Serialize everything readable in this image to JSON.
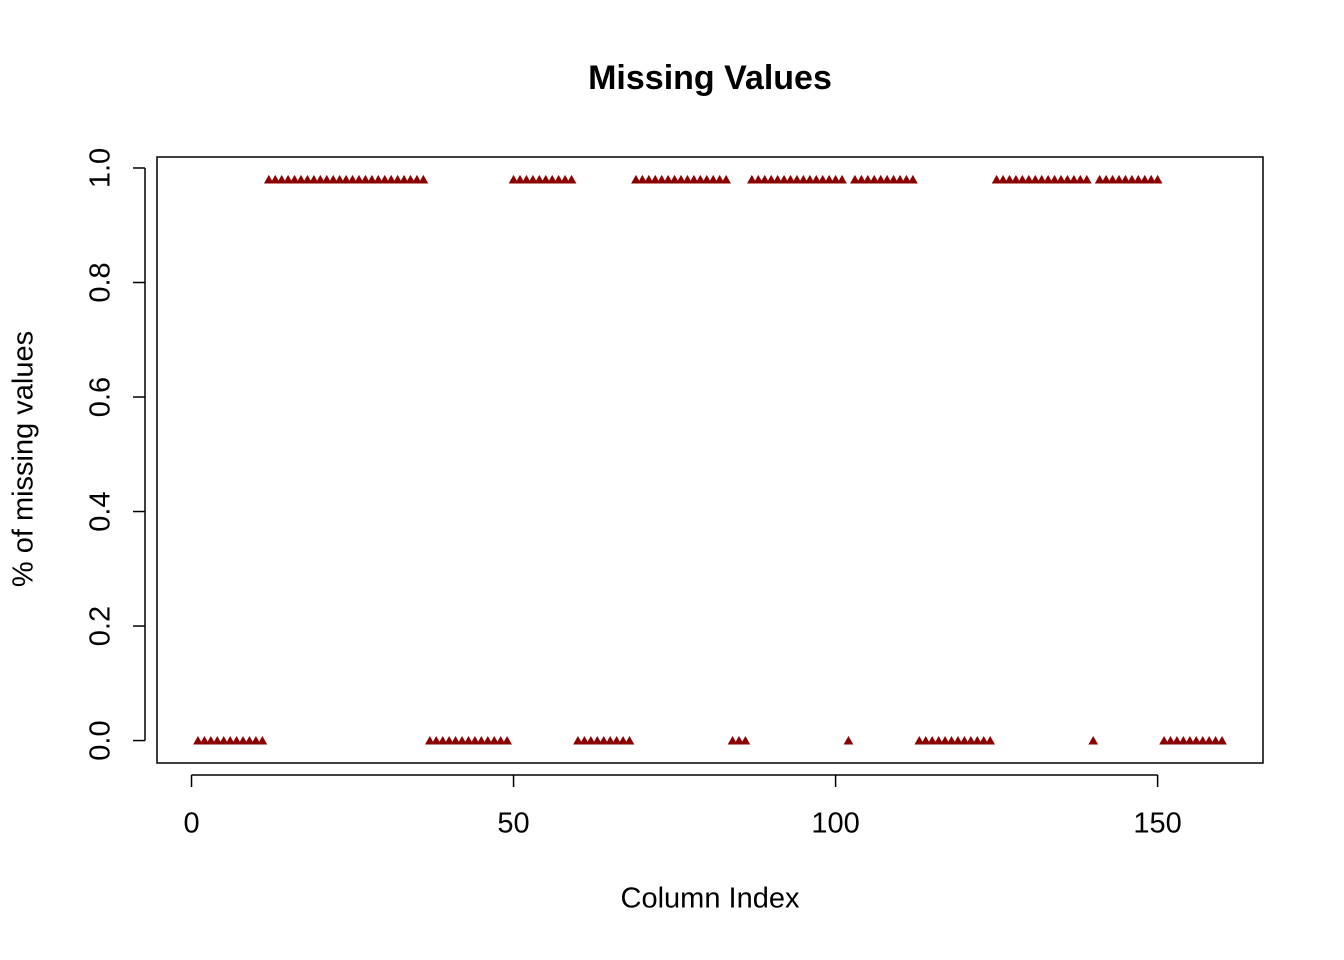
{
  "chart_data": {
    "type": "scatter",
    "title": "Missing Values",
    "x_label": "Column Index",
    "y_label": "% of missing values",
    "x": [
      1,
      2,
      3,
      4,
      5,
      6,
      7,
      8,
      9,
      10,
      11,
      12,
      13,
      14,
      15,
      16,
      17,
      18,
      19,
      20,
      21,
      22,
      23,
      24,
      25,
      26,
      27,
      28,
      29,
      30,
      31,
      32,
      33,
      34,
      35,
      36,
      37,
      38,
      39,
      40,
      41,
      42,
      43,
      44,
      45,
      46,
      47,
      48,
      49,
      50,
      51,
      52,
      53,
      54,
      55,
      56,
      57,
      58,
      59,
      60,
      61,
      62,
      63,
      64,
      65,
      66,
      67,
      68,
      69,
      70,
      71,
      72,
      73,
      74,
      75,
      76,
      77,
      78,
      79,
      80,
      81,
      82,
      83,
      84,
      85,
      86,
      87,
      88,
      89,
      90,
      91,
      92,
      93,
      94,
      95,
      96,
      97,
      98,
      99,
      100,
      101,
      102,
      103,
      104,
      105,
      106,
      107,
      108,
      109,
      110,
      111,
      112,
      113,
      114,
      115,
      116,
      117,
      118,
      119,
      120,
      121,
      122,
      123,
      124,
      125,
      126,
      127,
      128,
      129,
      130,
      131,
      132,
      133,
      134,
      135,
      136,
      137,
      138,
      139,
      140,
      141,
      142,
      143,
      144,
      145,
      146,
      147,
      148,
      149,
      150,
      151,
      152,
      153,
      154,
      155,
      156,
      157,
      158,
      159,
      160
    ],
    "values": [
      0,
      0,
      0,
      0,
      0,
      0,
      0,
      0,
      0,
      0,
      0,
      0.98,
      0.98,
      0.98,
      0.98,
      0.98,
      0.98,
      0.98,
      0.98,
      0.98,
      0.98,
      0.98,
      0.98,
      0.98,
      0.98,
      0.98,
      0.98,
      0.98,
      0.98,
      0.98,
      0.98,
      0.98,
      0.98,
      0.98,
      0.98,
      0.98,
      0,
      0,
      0,
      0,
      0,
      0,
      0,
      0,
      0,
      0,
      0,
      0,
      0,
      0.98,
      0.98,
      0.98,
      0.98,
      0.98,
      0.98,
      0.98,
      0.98,
      0.98,
      0.98,
      0,
      0,
      0,
      0,
      0,
      0,
      0,
      0,
      0,
      0.98,
      0.98,
      0.98,
      0.98,
      0.98,
      0.98,
      0.98,
      0.98,
      0.98,
      0.98,
      0.98,
      0.98,
      0.98,
      0.98,
      0.98,
      0,
      0,
      0,
      0.98,
      0.98,
      0.98,
      0.98,
      0.98,
      0.98,
      0.98,
      0.98,
      0.98,
      0.98,
      0.98,
      0.98,
      0.98,
      0.98,
      0.98,
      0,
      0.98,
      0.98,
      0.98,
      0.98,
      0.98,
      0.98,
      0.98,
      0.98,
      0.98,
      0.98,
      0,
      0,
      0,
      0,
      0,
      0,
      0,
      0,
      0,
      0,
      0,
      0,
      0.98,
      0.98,
      0.98,
      0.98,
      0.98,
      0.98,
      0.98,
      0.98,
      0.98,
      0.98,
      0.98,
      0.98,
      0.98,
      0.98,
      0.98,
      0,
      0.98,
      0.98,
      0.98,
      0.98,
      0.98,
      0.98,
      0.98,
      0.98,
      0.98,
      0.98,
      0,
      0,
      0,
      0,
      0,
      0,
      0,
      0,
      0,
      0
    ],
    "color": "#8b0000",
    "xlim": [
      -5.36,
      166.36
    ],
    "xticks": [
      0,
      50,
      100,
      150
    ],
    "ylim": [
      -0.0392,
      1.0192
    ],
    "yticks": [
      {
        "value": 0,
        "label": "0.0"
      },
      0.2,
      0.4,
      0.6,
      0.8,
      {
        "value": 1,
        "label": "1.0"
      }
    ]
  }
}
